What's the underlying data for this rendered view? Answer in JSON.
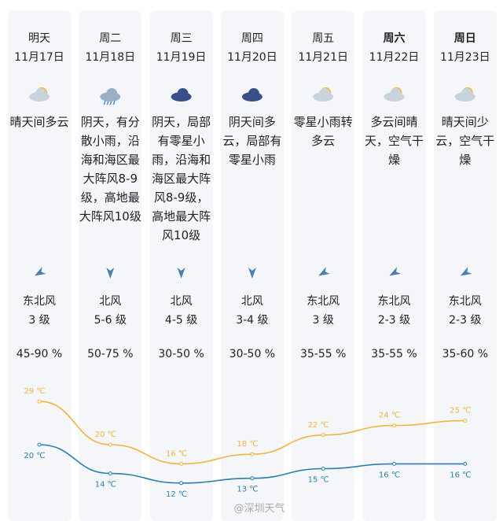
{
  "days": [
    {
      "day": "明天",
      "date": "11月17日",
      "desc": "晴天间多云",
      "wind": "东北风",
      "level": "3 级",
      "humidity": "45-90 %"
    },
    {
      "day": "周二",
      "date": "11月18日",
      "desc": "阴天，有分散小雨，沿海和海区最大阵风8-9级，高地最大阵风10级",
      "wind": "北风",
      "level": "5-6 级",
      "humidity": "50-75 %"
    },
    {
      "day": "周三",
      "date": "11月19日",
      "desc": "阴天，局部有零星小雨，沿海和海区最大阵风8-9级，高地最大阵风10级",
      "wind": "北风",
      "level": "4-5 级",
      "humidity": "30-50 %"
    },
    {
      "day": "周四",
      "date": "11月20日",
      "desc": "阴天间多云，局部有零星小雨",
      "wind": "北风",
      "level": "3-4 级",
      "humidity": "30-50 %"
    },
    {
      "day": "周五",
      "date": "11月21日",
      "desc": "零星小雨转多云",
      "wind": "东北风",
      "level": "3 级",
      "humidity": "35-55 %"
    },
    {
      "day": "周六",
      "date": "11月22日",
      "desc": "多云间晴天，空气干燥",
      "wind": "东北风",
      "level": "2-3 级",
      "humidity": "35-55 %"
    },
    {
      "day": "周日",
      "date": "11月23日",
      "desc": "晴天间少云，空气干燥",
      "wind": "东北风",
      "level": "2-3 级",
      "humidity": "35-60 %"
    }
  ],
  "watermark": "@深圳天气",
  "chart_data": {
    "type": "line",
    "ylim": [
      10,
      30
    ],
    "series": [
      {
        "name": "high",
        "color": "#f0b53c",
        "values": [
          29,
          20,
          16,
          18,
          22,
          24,
          25
        ],
        "value_labels": [
          "29 ℃",
          "20 ℃",
          "16 ℃",
          "18 ℃",
          "22 ℃",
          "24 ℃",
          "25 ℃"
        ]
      },
      {
        "name": "low",
        "color": "#2b7fac",
        "values": [
          20,
          14,
          12,
          13,
          15,
          16,
          16
        ],
        "value_labels": [
          "20 ℃",
          "14 ℃",
          "12 ℃",
          "13 ℃",
          "15 ℃",
          "16 ℃",
          "16 ℃"
        ]
      }
    ]
  }
}
